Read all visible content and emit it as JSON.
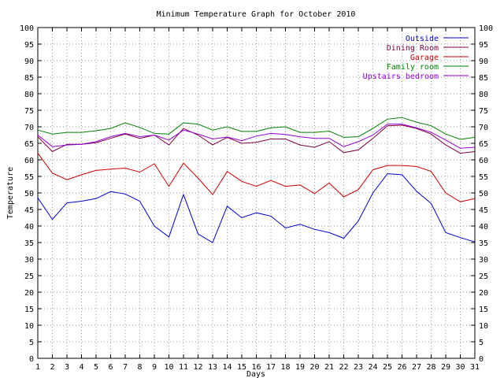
{
  "chart_data": {
    "type": "line",
    "title": "Minimum Temperature Graph for October 2010",
    "xlabel": "Days",
    "ylabel": "Temperature",
    "x": [
      1,
      2,
      3,
      4,
      5,
      6,
      7,
      8,
      9,
      10,
      11,
      12,
      13,
      14,
      15,
      16,
      17,
      18,
      19,
      20,
      21,
      22,
      23,
      24,
      25,
      26,
      27,
      28,
      29,
      30,
      31
    ],
    "xlim": [
      1,
      31
    ],
    "ylim": [
      0,
      100
    ],
    "y_ticks": [
      0,
      5,
      10,
      15,
      20,
      25,
      30,
      35,
      40,
      45,
      50,
      55,
      60,
      65,
      70,
      75,
      80,
      85,
      90,
      95,
      100
    ],
    "mirror_y_ticks_right": true,
    "grid": true,
    "legend_position": "top-right",
    "series": [
      {
        "name": "Outside",
        "color": "#0000cc",
        "values": [
          48.5,
          42,
          47,
          47.5,
          48.3,
          50.4,
          49.7,
          47.5,
          40,
          36.7,
          49.5,
          37.6,
          35,
          46,
          42.5,
          44,
          43,
          39.4,
          40.5,
          39,
          38,
          36.3,
          41.5,
          50,
          55.8,
          55.5,
          50.5,
          46.8,
          38,
          36.5,
          35.2
        ]
      },
      {
        "name": "Dining Room",
        "color": "#800040",
        "values": [
          67,
          62.5,
          64.7,
          64.7,
          65.2,
          66.5,
          67.8,
          66.5,
          67.5,
          64.5,
          69.5,
          67.5,
          64.5,
          66.8,
          65,
          65.3,
          66.3,
          66.3,
          64.5,
          63.8,
          65.5,
          62.2,
          63,
          66.5,
          70.3,
          70.5,
          69.5,
          67.8,
          64.5,
          62,
          62.5
        ]
      },
      {
        "name": "Garage",
        "color": "#cc0000",
        "values": [
          62,
          56,
          54,
          55.5,
          56.8,
          57.2,
          57.5,
          56.3,
          58.8,
          52,
          59,
          54.5,
          49.5,
          56.5,
          53.5,
          52,
          53.8,
          52,
          52.4,
          49.8,
          53,
          48.8,
          51,
          57,
          58.3,
          58.3,
          58,
          56.5,
          50,
          47.3,
          48.3
        ]
      },
      {
        "name": "Family room",
        "color": "#008000",
        "values": [
          69,
          67.8,
          68.3,
          68.3,
          68.8,
          69.5,
          71.2,
          69.8,
          68,
          67.8,
          71.2,
          70.8,
          69,
          70,
          68.6,
          68.6,
          69.7,
          70,
          68.3,
          68.3,
          68.7,
          66.8,
          67,
          69.5,
          72.3,
          72.8,
          71.4,
          70.3,
          67.8,
          66.2,
          66.8
        ]
      },
      {
        "name": "Upstairs bedroom",
        "color": "#9400d3",
        "values": [
          67.5,
          64,
          64.5,
          64.7,
          65.5,
          67,
          68,
          67,
          67.5,
          66,
          69,
          67.8,
          66.3,
          66.9,
          65.8,
          67.2,
          68,
          67.7,
          67,
          66.5,
          66.5,
          64,
          65.5,
          67.5,
          70.8,
          70.8,
          69.7,
          68.3,
          66,
          63.5,
          63.8
        ]
      }
    ]
  }
}
